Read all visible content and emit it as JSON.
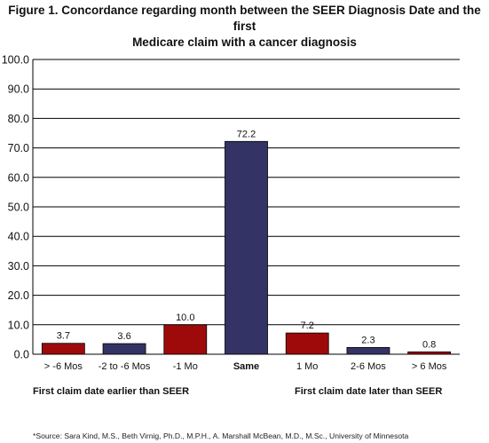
{
  "title_line1": "Figure 1. Concordance regarding month between the SEER Diagnosis Date and the first",
  "title_line2": "Medicare claim with a cancer diagnosis",
  "group_labels": {
    "left": "First claim date earlier than SEER",
    "right": "First claim date later than SEER"
  },
  "source": "*Source:  Sara Kind, M.S., Beth Virnig, Ph.D., M.P.H.,  A. Marshall McBean, M.D., M.Sc.,  University of Minnesota",
  "colors": {
    "red": "#9e0a0a",
    "navy": "#333366",
    "grid": "#000000"
  },
  "chart_data": {
    "type": "bar",
    "title": "Figure 1. Concordance regarding month between the SEER Diagnosis Date and the first Medicare claim with a cancer diagnosis",
    "xlabel": "",
    "ylabel": "",
    "categories": [
      "> -6 Mos",
      "-2 to -6 Mos",
      "-1 Mo",
      "Same",
      "1 Mo",
      "2-6 Mos",
      "> 6 Mos"
    ],
    "values": [
      3.7,
      3.6,
      10.0,
      72.2,
      7.2,
      2.3,
      0.8
    ],
    "value_labels": [
      "3.7",
      "3.6",
      "10.0",
      "72.2",
      "7.2",
      "2.3",
      "0.8"
    ],
    "bar_colors": [
      "red",
      "navy",
      "red",
      "navy",
      "red",
      "navy",
      "red"
    ],
    "bold_categories": [
      "Same"
    ],
    "ylim": [
      0,
      100
    ],
    "yticks": [
      "0.0",
      "10.0",
      "20.0",
      "30.0",
      "40.0",
      "50.0",
      "60.0",
      "70.0",
      "80.0",
      "90.0",
      "100.0"
    ],
    "grid": true,
    "legend": "none"
  }
}
